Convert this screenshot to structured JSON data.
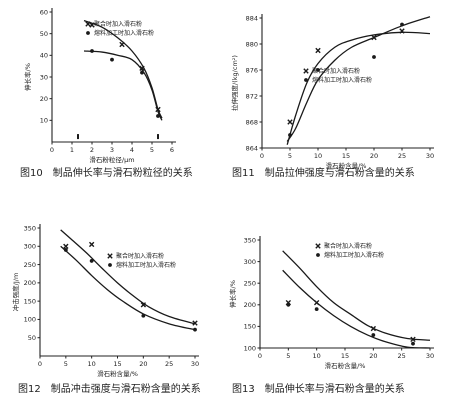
{
  "chart_data": [
    {
      "type": "line",
      "caption": "图10　制品伸长率与滑石粉粒径的关系",
      "xlabel": "滑石粉粒径/μm",
      "ylabel": "伸长率/%",
      "xlim": [
        0,
        6
      ],
      "ylim": [
        0,
        60
      ],
      "xticks": [
        0,
        1,
        2,
        3,
        4,
        5,
        6
      ],
      "yticks": [
        10,
        20,
        30,
        40,
        50,
        60
      ],
      "series": [
        {
          "name": "聚合时加入滑石粉",
          "marker": "x",
          "points": [
            [
              2,
              54
            ],
            [
              3.5,
              45
            ],
            [
              4.5,
              34
            ],
            [
              5.3,
              15
            ]
          ],
          "curve": [
            [
              1.6,
              56
            ],
            [
              2.5,
              53
            ],
            [
              3.3,
              48
            ],
            [
              4.0,
              42
            ],
            [
              4.6,
              34
            ],
            [
              5.0,
              25
            ],
            [
              5.3,
              15
            ],
            [
              5.5,
              11
            ]
          ]
        },
        {
          "name": "熔料加工时加入滑石粉",
          "marker": "o",
          "points": [
            [
              2,
              42
            ],
            [
              3,
              38
            ],
            [
              4.5,
              32
            ],
            [
              5.3,
              12
            ]
          ],
          "curve": [
            [
              1.6,
              42
            ],
            [
              2.5,
              41.5
            ],
            [
              3.3,
              40
            ],
            [
              4.0,
              38
            ],
            [
              4.6,
              32
            ],
            [
              5.0,
              24
            ],
            [
              5.3,
              14
            ],
            [
              5.5,
              10
            ]
          ]
        }
      ],
      "extra_points": [
        [
          1.3,
          2.5
        ],
        [
          5.3,
          2.5
        ]
      ]
    },
    {
      "type": "line",
      "caption": "图11　制品拉伸强度与滑石粉含量的关系",
      "xlabel": "滑石粉含量/%",
      "ylabel": "拉伸强度/(kg/cm²)",
      "xlim": [
        0,
        30
      ],
      "ylim": [
        864,
        884
      ],
      "xticks": [
        0,
        5,
        10,
        15,
        20,
        25,
        30
      ],
      "yticks": [
        864,
        868,
        872,
        876,
        880,
        884
      ],
      "series": [
        {
          "name": "聚合时加入滑石粉",
          "marker": "x",
          "points": [
            [
              5,
              868
            ],
            [
              10,
              879
            ],
            [
              20,
              881
            ],
            [
              25,
              882
            ]
          ],
          "curve": [
            [
              4.5,
              864.5
            ],
            [
              6,
              869
            ],
            [
              8,
              874
            ],
            [
              10,
              877
            ],
            [
              13,
              879.5
            ],
            [
              16,
              880.6
            ],
            [
              20,
              881.4
            ],
            [
              25,
              881.8
            ],
            [
              30,
              881.6
            ]
          ]
        },
        {
          "name": "熔料加工时加入滑石粉",
          "marker": "o",
          "points": [
            [
              5,
              866
            ],
            [
              10,
              876
            ],
            [
              20,
              878
            ],
            [
              25,
              883
            ]
          ],
          "curve": [
            [
              4.5,
              865
            ],
            [
              6,
              867
            ],
            [
              8,
              871
            ],
            [
              10,
              874.5
            ],
            [
              13,
              877.5
            ],
            [
              16,
              879.5
            ],
            [
              20,
              881
            ],
            [
              25,
              882.8
            ],
            [
              30,
              884.2
            ]
          ]
        }
      ]
    },
    {
      "type": "line",
      "caption": "图12　制品冲击强度与滑石粉含量的关系",
      "xlabel": "滑石粉含量/%",
      "ylabel": "冲击强度/J/m",
      "xlim": [
        0,
        30
      ],
      "ylim": [
        0,
        350
      ],
      "xticks": [
        0,
        5,
        10,
        15,
        20,
        25,
        30
      ],
      "yticks": [
        50,
        100,
        150,
        200,
        250,
        300,
        350
      ],
      "series": [
        {
          "name": "聚合时加入滑石粉",
          "marker": "x",
          "points": [
            [
              5,
              300
            ],
            [
              10,
              305
            ],
            [
              20,
              140
            ],
            [
              30,
              90
            ]
          ],
          "curve": [
            [
              4,
              345
            ],
            [
              6,
              320
            ],
            [
              9,
              282
            ],
            [
              12,
              240
            ],
            [
              15,
              200
            ],
            [
              18,
              165
            ],
            [
              21,
              135
            ],
            [
              25,
              108
            ],
            [
              30,
              88
            ]
          ]
        },
        {
          "name": "熔料加工时加入滑石粉",
          "marker": "o",
          "points": [
            [
              5,
              290
            ],
            [
              10,
              260
            ],
            [
              20,
              110
            ],
            [
              30,
              72
            ]
          ],
          "curve": [
            [
              4,
              300
            ],
            [
              7,
              262
            ],
            [
              10,
              220
            ],
            [
              13,
              182
            ],
            [
              16,
              150
            ],
            [
              20,
              115
            ],
            [
              25,
              88
            ],
            [
              30,
              72
            ]
          ]
        }
      ]
    },
    {
      "type": "line",
      "caption": "图13　制品伸长率与滑石粉含量的关系",
      "xlabel": "滑石粉含量/%",
      "ylabel": "伸长率/%",
      "xlim": [
        0,
        30
      ],
      "ylim": [
        100,
        350
      ],
      "xticks": [
        0,
        5,
        10,
        15,
        20,
        25,
        30
      ],
      "yticks": [
        100,
        150,
        200,
        250,
        300,
        350
      ],
      "series": [
        {
          "name": "聚合时加入滑石粉",
          "marker": "x",
          "points": [
            [
              5,
              205
            ],
            [
              10,
              205
            ],
            [
              20,
              145
            ],
            [
              27,
              120
            ]
          ],
          "curve": [
            [
              4,
              325
            ],
            [
              7,
              285
            ],
            [
              10,
              242
            ],
            [
              13,
              205
            ],
            [
              16,
              178
            ],
            [
              19,
              152
            ],
            [
              22,
              135
            ],
            [
              26,
              122
            ],
            [
              30,
              118
            ]
          ]
        },
        {
          "name": "熔料加工时加入滑石粉",
          "marker": "o",
          "points": [
            [
              5,
              200
            ],
            [
              10,
              190
            ],
            [
              20,
              130
            ],
            [
              27,
              110
            ]
          ],
          "curve": [
            [
              4,
              280
            ],
            [
              7,
              240
            ],
            [
              10,
              205
            ],
            [
              13,
              175
            ],
            [
              16,
              150
            ],
            [
              19,
              130
            ],
            [
              22,
              115
            ],
            [
              26,
              102
            ],
            [
              30,
              100
            ]
          ]
        }
      ]
    }
  ]
}
